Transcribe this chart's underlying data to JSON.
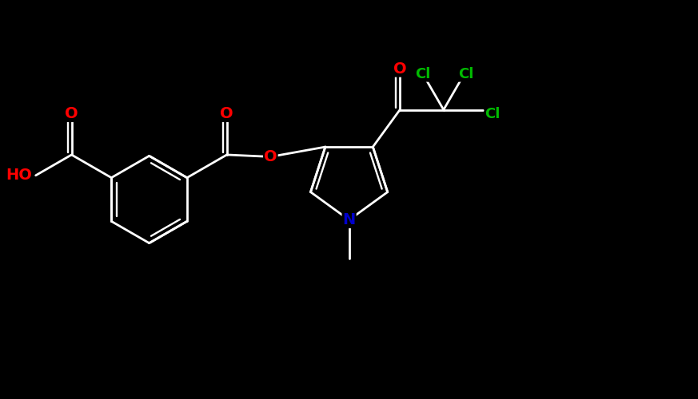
{
  "background_color": "#000000",
  "bond_color": "#ffffff",
  "atom_colors": {
    "O": "#ff0000",
    "N": "#0000cc",
    "Cl": "#00bb00",
    "C": "#ffffff",
    "H": "#ffffff"
  },
  "figsize": [
    8.73,
    5.0
  ],
  "dpi": 100,
  "xlim": [
    0,
    17
  ],
  "ylim": [
    0,
    10
  ],
  "bond_lw": 2.0,
  "font_size": 14,
  "font_size_cl": 13
}
